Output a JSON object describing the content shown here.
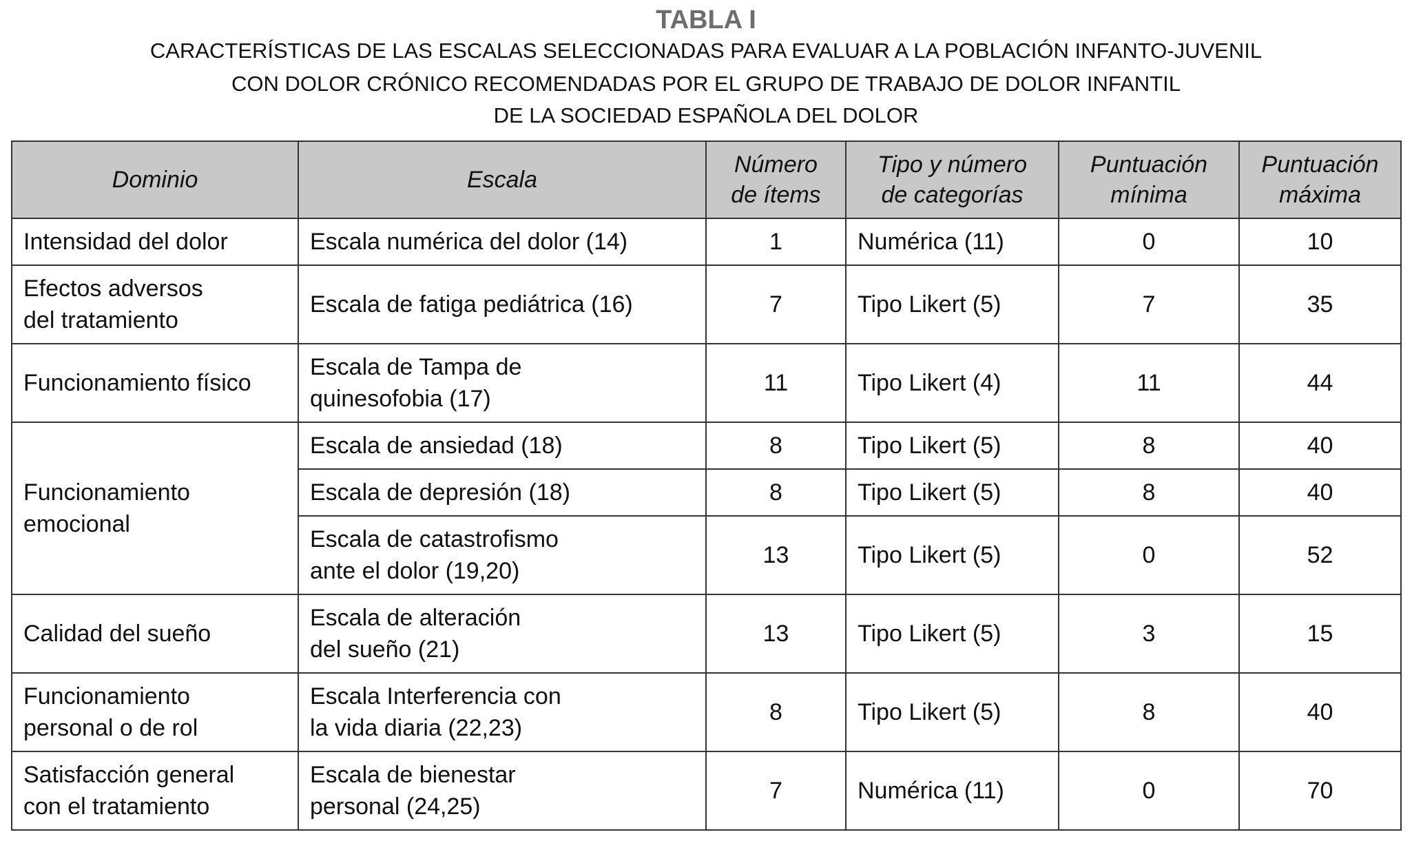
{
  "title": "TABLA I",
  "subtitle_lines": [
    "CARACTERÍSTICAS DE LAS ESCALAS SELECCIONADAS PARA EVALUAR A LA POBLACIÓN INFANTO-JUVENIL",
    "CON DOLOR CRÓNICO RECOMENDADAS POR EL GRUPO DE TRABAJO DE DOLOR INFANTIL",
    "DE LA SOCIEDAD ESPAÑOLA DEL DOLOR"
  ],
  "headers": {
    "dominio": "Dominio",
    "escala": "Escala",
    "items_1": "Número",
    "items_2": "de ítems",
    "tipo_1": "Tipo y número",
    "tipo_2": "de categorías",
    "min_1": "Puntuación",
    "min_2": "mínima",
    "max_1": "Puntuación",
    "max_2": "máxima"
  },
  "rows": [
    {
      "dominio": [
        "Intensidad del dolor"
      ],
      "escala": [
        "Escala numérica del dolor (14)"
      ],
      "items": "1",
      "tipo": "Numérica (11)",
      "min": "0",
      "max": "10"
    },
    {
      "dominio": [
        "Efectos adversos",
        "del tratamiento"
      ],
      "escala": [
        "Escala de fatiga pediátrica (16)"
      ],
      "items": "7",
      "tipo": "Tipo Likert (5)",
      "min": "7",
      "max": "35"
    },
    {
      "dominio": [
        "Funcionamiento físico"
      ],
      "escala": [
        "Escala de Tampa de",
        "quinesofobia (17)"
      ],
      "items": "11",
      "tipo": "Tipo Likert (4)",
      "min": "11",
      "max": "44"
    },
    {
      "dominio": [
        "Funcionamiento",
        "emocional"
      ],
      "escala": [
        "Escala de ansiedad (18)"
      ],
      "items": "8",
      "tipo": "Tipo Likert (5)",
      "min": "8",
      "max": "40"
    },
    {
      "escala": [
        "Escala de depresión (18)"
      ],
      "items": "8",
      "tipo": "Tipo Likert (5)",
      "min": "8",
      "max": "40"
    },
    {
      "escala": [
        "Escala de catastrofismo",
        "ante el dolor (19,20)"
      ],
      "items": "13",
      "tipo": "Tipo Likert (5)",
      "min": "0",
      "max": "52"
    },
    {
      "dominio": [
        "Calidad del sueño"
      ],
      "escala": [
        "Escala de alteración",
        "del sueño (21)"
      ],
      "items": "13",
      "tipo": "Tipo Likert (5)",
      "min": "3",
      "max": "15"
    },
    {
      "dominio": [
        "Funcionamiento",
        "personal o de rol"
      ],
      "escala": [
        "Escala Interferencia con",
        "la vida diaria (22,23)"
      ],
      "items": "8",
      "tipo": "Tipo Likert (5)",
      "min": "8",
      "max": "40"
    },
    {
      "dominio": [
        "Satisfacción general",
        "con el tratamiento"
      ],
      "escala": [
        "Escala de bienestar",
        "personal (24,25)"
      ],
      "items": "7",
      "tipo": "Numérica (11)",
      "min": "0",
      "max": "70"
    }
  ]
}
